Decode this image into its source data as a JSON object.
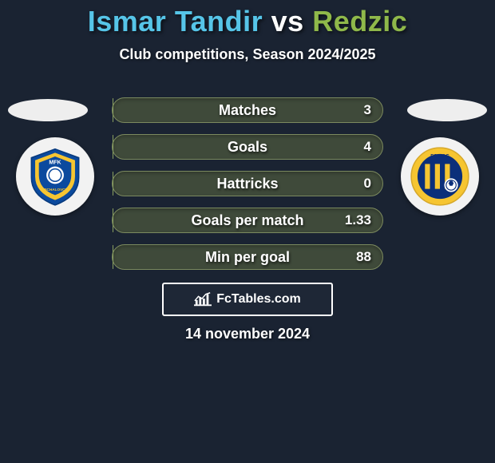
{
  "header": {
    "title_full": "Ismar Tandir vs Redzic",
    "player1": "Ismar Tandir",
    "vs": " vs ",
    "player2": "Redzic",
    "title_color_p1": "#56c5e8",
    "title_color_vs": "#ffffff",
    "title_color_p2": "#8fb84a",
    "subtitle": "Club competitions, Season 2024/2025"
  },
  "players": {
    "left": {
      "name": "Ismar Tandir",
      "club": "MFK Zemplin Michalovce",
      "badge_colors": {
        "primary": "#0b4a9e",
        "secondary": "#f6c531",
        "accent": "#ffffff"
      }
    },
    "right": {
      "name": "Redzic",
      "club": "FC DAC 1904",
      "badge_colors": {
        "primary": "#f6c531",
        "secondary": "#0b2f7a",
        "accent": "#ffffff"
      }
    }
  },
  "stats": {
    "bar_bg": "#3f4a3a",
    "bar_fill": "#6a7f48",
    "bar_border": "#7c8a5f",
    "label_fontsize": 18,
    "value_fontsize": 17,
    "rows": [
      {
        "label": "Matches",
        "left": "",
        "right": "3",
        "fill_pct": 0
      },
      {
        "label": "Goals",
        "left": "",
        "right": "4",
        "fill_pct": 0
      },
      {
        "label": "Hattricks",
        "left": "",
        "right": "0",
        "fill_pct": 0
      },
      {
        "label": "Goals per match",
        "left": "",
        "right": "1.33",
        "fill_pct": 0
      },
      {
        "label": "Min per goal",
        "left": "",
        "right": "88",
        "fill_pct": 0
      }
    ]
  },
  "footer": {
    "brand_text": "FcTables.com",
    "date_text": "14 november 2024"
  },
  "colors": {
    "page_bg": "#1a2332",
    "text": "#ffffff"
  }
}
